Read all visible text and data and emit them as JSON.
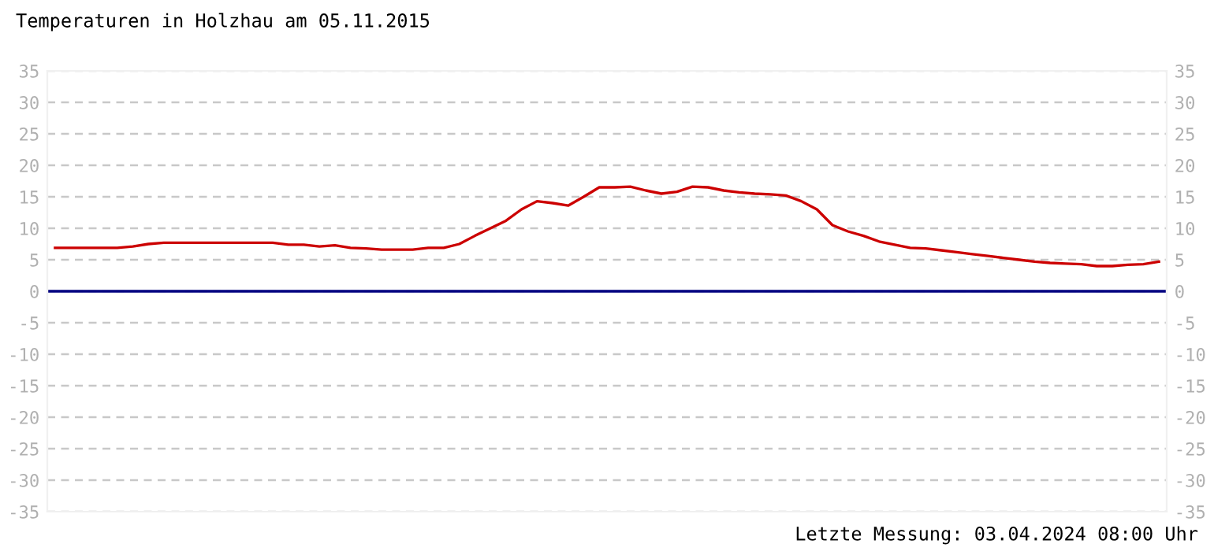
{
  "chart_data": {
    "type": "line",
    "title": "Temperaturen in Holzhau am 05.11.2015",
    "categories": [
      null,
      null,
      null,
      null,
      null,
      null,
      null,
      null,
      null,
      null,
      null,
      null,
      null,
      null,
      null,
      null,
      null,
      null,
      null,
      null,
      null,
      null,
      null,
      null,
      null,
      null,
      null,
      null,
      null,
      null,
      null,
      null,
      null,
      null,
      null,
      null,
      null,
      null,
      null,
      null,
      null,
      null,
      null,
      null,
      null,
      null,
      null,
      null,
      null,
      null,
      null,
      null,
      null,
      null,
      null,
      null,
      null,
      null,
      null,
      null,
      null,
      null,
      null,
      null,
      null,
      null,
      null,
      null,
      null,
      null,
      null,
      null
    ],
    "series": [
      {
        "color": "#cc0000",
        "values": [
          6.9,
          6.9,
          6.9,
          6.9,
          6.9,
          7.1,
          7.5,
          7.7,
          7.7,
          7.7,
          7.7,
          7.7,
          7.7,
          7.7,
          7.7,
          7.4,
          7.4,
          7.1,
          7.3,
          6.9,
          6.8,
          6.6,
          6.6,
          6.6,
          6.9,
          6.9,
          7.5,
          8.8,
          10.0,
          11.2,
          13.0,
          14.3,
          14.0,
          13.6,
          15.0,
          16.5,
          16.5,
          16.6,
          16.0,
          15.5,
          15.8,
          16.6,
          16.5,
          16.0,
          15.7,
          15.5,
          15.4,
          15.2,
          14.3,
          13.0,
          10.5,
          9.5,
          8.8,
          7.9,
          7.4,
          6.9,
          6.8,
          6.5,
          6.2,
          5.9,
          5.6,
          5.3,
          5.0,
          4.7,
          4.5,
          4.4,
          4.3,
          4.0,
          4.0,
          4.2,
          4.3,
          4.7
        ]
      }
    ],
    "ylim": [
      -35,
      35
    ],
    "yticks": [
      -35,
      -30,
      -25,
      -20,
      -15,
      -10,
      -5,
      0,
      5,
      10,
      15,
      20,
      25,
      30,
      35
    ],
    "y2lim": [
      -35,
      35
    ],
    "y2ticks": [
      -35,
      -30,
      -25,
      -20,
      -15,
      -10,
      -5,
      0,
      5,
      10,
      15,
      20,
      25,
      30,
      35
    ],
    "grid": "y",
    "line_style": "solid",
    "tick_labels": "y",
    "ref_lines": [
      {
        "axis": "y",
        "value": 0,
        "color": "#000080",
        "line_style": "solid"
      }
    ],
    "annotations": [
      "Letzte Messung: 03.04.2024 08:00 Uhr"
    ]
  }
}
